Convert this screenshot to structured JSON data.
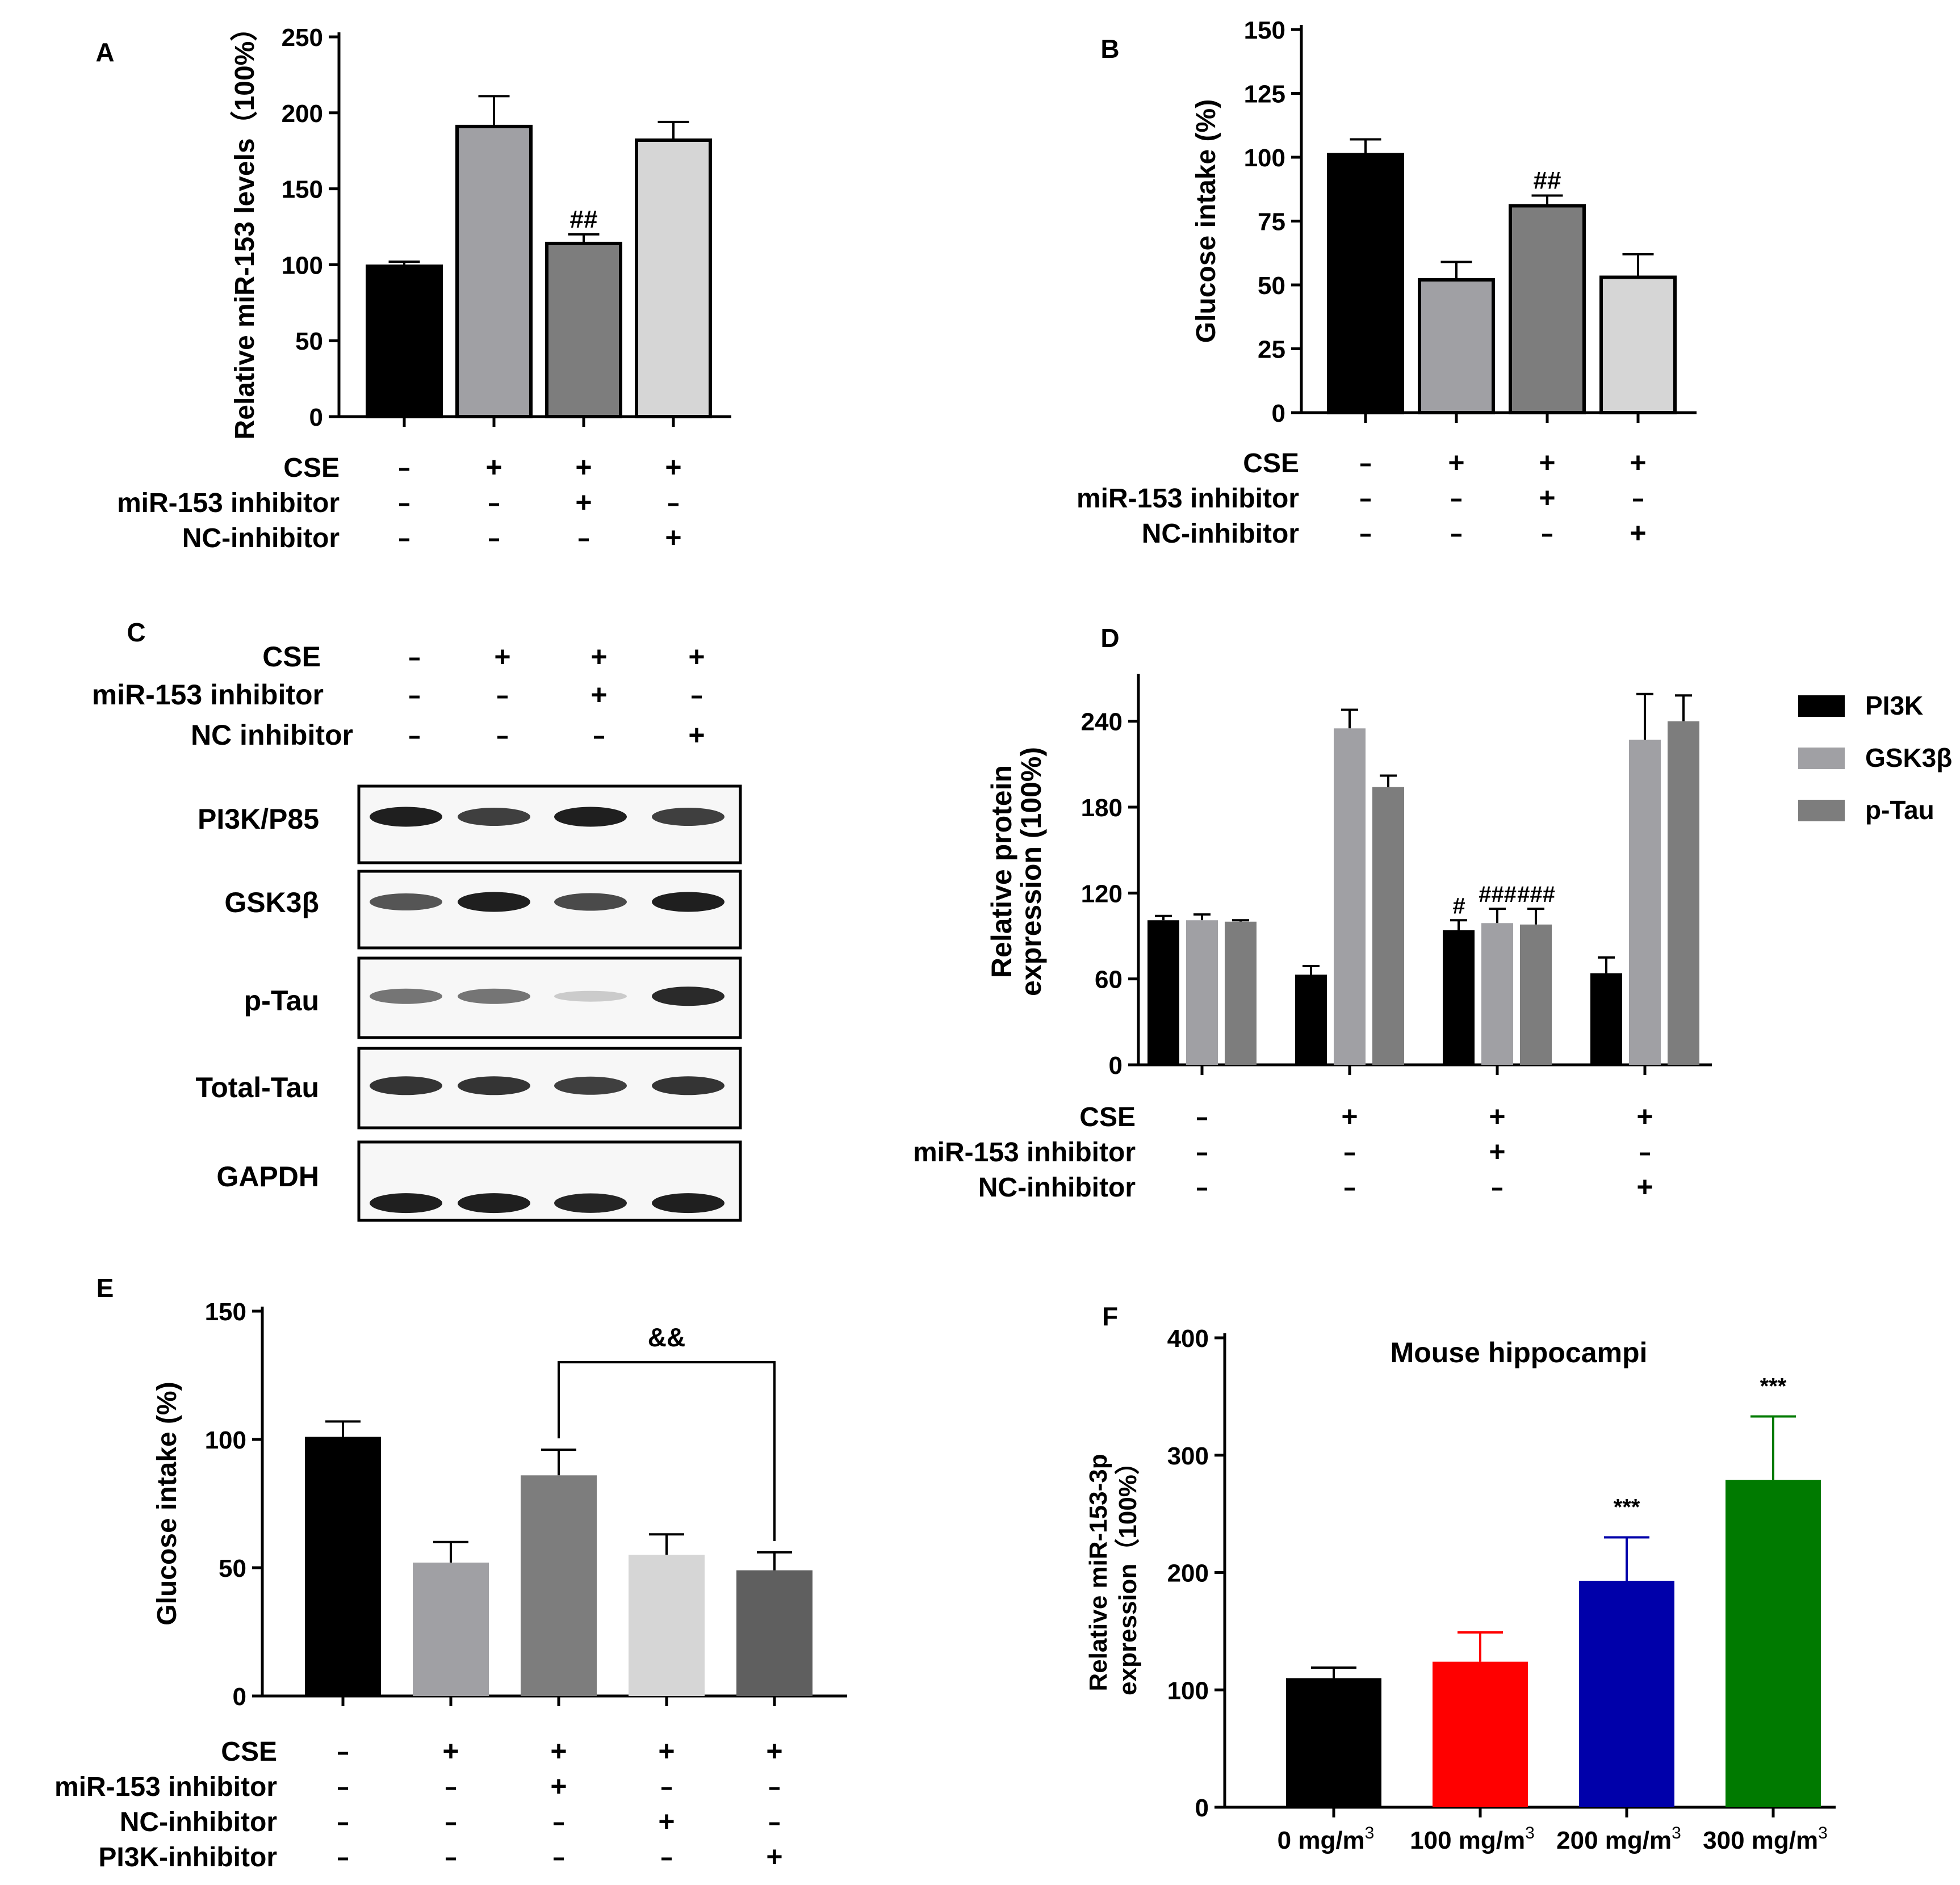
{
  "treatment_rows": [
    "CSE",
    "miR-153 inhibitor",
    "NC-inhibitor"
  ],
  "chart_data": [
    {
      "panel": "A",
      "type": "bar",
      "ylabel": "Relative miR-153  levels（100%）",
      "ylim": [
        0,
        250
      ],
      "yticks": [
        0,
        50,
        100,
        150,
        200,
        250
      ],
      "values": [
        99,
        191,
        114,
        182
      ],
      "errors": [
        3,
        20,
        6,
        12
      ],
      "colors": [
        "#000000",
        "#a0a0a4",
        "#7d7d7d",
        "#d6d6d6"
      ],
      "annotations": [
        null,
        null,
        "##",
        null
      ],
      "treatments": {
        "labels": [
          "CSE",
          "miR-153 inhibitor",
          "NC-inhibitor"
        ],
        "signs": [
          [
            "-",
            "+",
            "+",
            "+"
          ],
          [
            "-",
            "-",
            "+",
            "-"
          ],
          [
            "-",
            "-",
            "-",
            "+"
          ]
        ]
      }
    },
    {
      "panel": "B",
      "type": "bar",
      "ylabel": "Glucose intake (%)",
      "ylim": [
        0,
        150
      ],
      "yticks": [
        0,
        25,
        50,
        75,
        100,
        125,
        150
      ],
      "values": [
        101,
        52,
        81,
        53
      ],
      "errors": [
        6,
        7,
        4,
        9
      ],
      "colors": [
        "#000000",
        "#a0a0a4",
        "#7d7d7d",
        "#d6d6d6"
      ],
      "annotations": [
        null,
        null,
        "##",
        null
      ],
      "treatments": {
        "labels": [
          "CSE",
          "miR-153 inhibitor",
          "NC-inhibitor"
        ],
        "signs": [
          [
            "-",
            "+",
            "+",
            "+"
          ],
          [
            "-",
            "-",
            "+",
            "-"
          ],
          [
            "-",
            "-",
            "-",
            "+"
          ]
        ]
      }
    },
    {
      "panel": "D",
      "type": "bar",
      "ylabel": [
        "Relative protein",
        "expression (100%)"
      ],
      "ylim": [
        0,
        270
      ],
      "yticks": [
        0,
        60,
        120,
        180,
        240
      ],
      "series": [
        {
          "name": "PI3K",
          "color": "#000000",
          "values": [
            101,
            63,
            94,
            64
          ],
          "errors": [
            3,
            6,
            7,
            11
          ],
          "annotations": [
            null,
            null,
            "#",
            null
          ]
        },
        {
          "name": "GSK3β",
          "color": "#a0a0a4",
          "values": [
            101,
            235,
            99,
            227
          ],
          "errors": [
            4,
            13,
            10,
            32
          ],
          "annotations": [
            null,
            null,
            "###",
            null
          ]
        },
        {
          "name": "p-Tau",
          "color": "#7d7d7d",
          "values": [
            100,
            194,
            98,
            240
          ],
          "errors": [
            1,
            8,
            11,
            18
          ],
          "annotations": [
            null,
            null,
            "###",
            null
          ]
        }
      ],
      "legend": "right",
      "treatments": {
        "labels": [
          "CSE",
          "miR-153 inhibitor",
          "NC-inhibitor"
        ],
        "signs": [
          [
            "-",
            "+",
            "+",
            "+"
          ],
          [
            "-",
            "-",
            "+",
            "-"
          ],
          [
            "-",
            "-",
            "-",
            "+"
          ]
        ]
      }
    },
    {
      "panel": "E",
      "type": "bar",
      "ylabel": "Glucose intake (%)",
      "ylim": [
        0,
        150
      ],
      "yticks": [
        0,
        50,
        100,
        150
      ],
      "values": [
        101,
        52,
        86,
        55,
        49
      ],
      "errors": [
        6,
        8,
        10,
        8,
        7
      ],
      "colors": [
        "#000000",
        "#a0a0a4",
        "#7d7d7d",
        "#d6d6d6",
        "#5f5f5f"
      ],
      "bracket": {
        "from": 2,
        "to": 4,
        "label": "&&"
      },
      "treatments": {
        "labels": [
          "CSE",
          "miR-153 inhibitor",
          "NC-inhibitor",
          "PI3K-inhibitor"
        ],
        "signs": [
          [
            "-",
            "+",
            "+",
            "+",
            "+"
          ],
          [
            "-",
            "-",
            "+",
            "-",
            "-"
          ],
          [
            "-",
            "-",
            "-",
            "+",
            "-"
          ],
          [
            "-",
            "-",
            "-",
            "-",
            "+"
          ]
        ]
      }
    },
    {
      "panel": "F",
      "type": "bar",
      "title": "Mouse hippocampi",
      "ylabel": [
        "Relative miR-153-3p",
        "expression（100%）"
      ],
      "ylim": [
        0,
        400
      ],
      "yticks": [
        0,
        100,
        200,
        300,
        400
      ],
      "categories": [
        "0 mg/m",
        "100 mg/m",
        "200 mg/m",
        "300 mg/m"
      ],
      "category_superscript": "3",
      "values": [
        110,
        124,
        193,
        279
      ],
      "errors": [
        9,
        25,
        37,
        54
      ],
      "colors": [
        "#000000",
        "#ff0000",
        "#0000aa",
        "#007a00"
      ],
      "error_colors": [
        "#000000",
        "#ff0000",
        "#0000aa",
        "#007a00"
      ],
      "annotations": [
        null,
        null,
        "***",
        "***"
      ]
    }
  ],
  "western_blot": {
    "panel": "C",
    "treatments": {
      "labels": [
        "CSE",
        "miR-153 inhibitor",
        "NC inhibitor"
      ],
      "signs": [
        [
          "-",
          "+",
          "+",
          "+"
        ],
        [
          "-",
          "-",
          "+",
          "-"
        ],
        [
          "-",
          "-",
          "-",
          "+"
        ]
      ]
    },
    "proteins": [
      "PI3K/P85",
      "GSK3β",
      "p-Tau",
      "Total-Tau",
      "GAPDH"
    ],
    "band_intensity": [
      [
        0.95,
        0.8,
        0.95,
        0.8
      ],
      [
        0.7,
        0.95,
        0.75,
        0.95
      ],
      [
        0.55,
        0.55,
        0.15,
        0.9
      ],
      [
        0.85,
        0.85,
        0.8,
        0.85
      ],
      [
        0.95,
        0.95,
        0.92,
        0.95
      ]
    ]
  }
}
